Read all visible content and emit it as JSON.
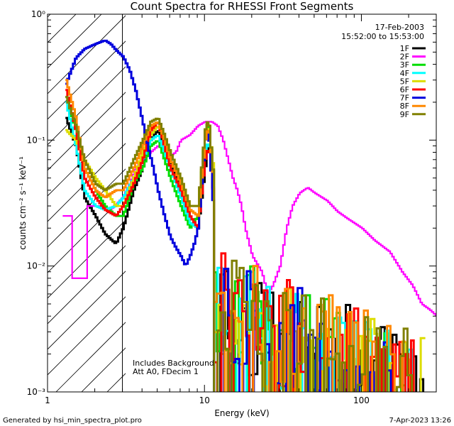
{
  "chart_data": {
    "type": "line",
    "title": "Count Spectra for RHESSI Front Segments",
    "xlabel": "Energy (keV)",
    "ylabel": "counts cm⁻² s⁻¹ keV⁻¹",
    "x_scale": "log",
    "y_scale": "log",
    "xlim": [
      1,
      300
    ],
    "ylim": [
      0.001,
      1
    ],
    "x_ticks": [
      {
        "value": 1,
        "label": "1"
      },
      {
        "value": 10,
        "label": "10"
      },
      {
        "value": 100,
        "label": "100"
      }
    ],
    "y_ticks": [
      {
        "value": 1,
        "label": "10⁰"
      },
      {
        "value": 0.1,
        "label": "10⁻¹"
      },
      {
        "value": 0.01,
        "label": "10⁻²"
      },
      {
        "value": 0.001,
        "label": "10⁻³"
      }
    ],
    "shaded_region_xmax_keV": 3,
    "date_label": "17-Feb-2003",
    "time_range_label": "15:52:00 to 15:53:00",
    "note_lines": [
      "Includes Background",
      "Att A0, FDecim 1"
    ],
    "footer_left": "Generated by hsi_min_spectra_plot.pro",
    "footer_right": "7-Apr-2023 13:26",
    "series": [
      {
        "name": "1F",
        "color": "#000000",
        "seed": 11,
        "noise_energy": 11.5,
        "points": [
          [
            1.3,
            0.15
          ],
          [
            1.5,
            0.09
          ],
          [
            1.7,
            0.035
          ],
          [
            2.0,
            0.025
          ],
          [
            2.3,
            0.018
          ],
          [
            2.7,
            0.015
          ],
          [
            3.0,
            0.02
          ],
          [
            3.5,
            0.04
          ],
          [
            4.0,
            0.06
          ],
          [
            4.5,
            0.1
          ],
          [
            5.0,
            0.12
          ],
          [
            5.5,
            0.09
          ],
          [
            6.0,
            0.07
          ],
          [
            7.0,
            0.04
          ],
          [
            8.0,
            0.025
          ],
          [
            9.0,
            0.02
          ],
          [
            10.0,
            0.06
          ],
          [
            10.5,
            0.1
          ],
          [
            11.5,
            0.03
          ]
        ]
      },
      {
        "name": "2F",
        "color": "#ff00ff",
        "seed": 0,
        "noise_energy": 0,
        "points": [
          [
            1.25,
            0.025
          ],
          [
            1.4,
            0.025
          ],
          [
            1.41,
            0.008
          ],
          [
            1.75,
            0.008
          ],
          [
            1.76,
            0.03
          ],
          [
            2.2,
            0.03
          ],
          [
            2.5,
            0.028
          ],
          [
            3.0,
            0.035
          ],
          [
            3.3,
            0.045
          ],
          [
            3.6,
            0.06
          ],
          [
            4.0,
            0.07
          ],
          [
            4.5,
            0.08
          ],
          [
            5.0,
            0.09
          ],
          [
            5.5,
            0.085
          ],
          [
            6.0,
            0.075
          ],
          [
            6.5,
            0.08
          ],
          [
            7.0,
            0.1
          ],
          [
            8.0,
            0.11
          ],
          [
            9.0,
            0.13
          ],
          [
            10.0,
            0.14
          ],
          [
            11.0,
            0.14
          ],
          [
            12.0,
            0.13
          ],
          [
            13.0,
            0.1
          ],
          [
            14.0,
            0.07
          ],
          [
            15.0,
            0.05
          ],
          [
            16.0,
            0.04
          ],
          [
            17.0,
            0.03
          ],
          [
            18.0,
            0.02
          ],
          [
            20.0,
            0.012
          ],
          [
            23.0,
            0.009
          ],
          [
            25.0,
            0.006
          ],
          [
            27.0,
            0.007
          ],
          [
            30.0,
            0.01
          ],
          [
            33.0,
            0.02
          ],
          [
            36.0,
            0.03
          ],
          [
            40.0,
            0.038
          ],
          [
            45.0,
            0.042
          ],
          [
            50.0,
            0.038
          ],
          [
            60.0,
            0.033
          ],
          [
            70.0,
            0.027
          ],
          [
            80.0,
            0.024
          ],
          [
            100.0,
            0.02
          ],
          [
            120.0,
            0.016
          ],
          [
            150.0,
            0.013
          ],
          [
            180.0,
            0.009
          ],
          [
            210.0,
            0.007
          ],
          [
            240.0,
            0.005
          ],
          [
            270.0,
            0.0045
          ],
          [
            300.0,
            0.004
          ]
        ]
      },
      {
        "name": "3F",
        "color": "#00dd00",
        "seed": 33,
        "noise_energy": 11.5,
        "points": [
          [
            1.3,
            0.22
          ],
          [
            1.5,
            0.12
          ],
          [
            1.7,
            0.06
          ],
          [
            2.0,
            0.04
          ],
          [
            2.3,
            0.03
          ],
          [
            2.7,
            0.025
          ],
          [
            3.0,
            0.025
          ],
          [
            3.5,
            0.045
          ],
          [
            4.0,
            0.06
          ],
          [
            4.5,
            0.09
          ],
          [
            5.0,
            0.1
          ],
          [
            5.5,
            0.07
          ],
          [
            6.0,
            0.05
          ],
          [
            7.0,
            0.03
          ],
          [
            8.0,
            0.02
          ],
          [
            9.0,
            0.025
          ],
          [
            10.0,
            0.12
          ],
          [
            10.5,
            0.14
          ],
          [
            11.5,
            0.04
          ]
        ]
      },
      {
        "name": "4F",
        "color": "#00ffff",
        "seed": 44,
        "noise_energy": 11.5,
        "points": [
          [
            1.3,
            0.2
          ],
          [
            1.5,
            0.09
          ],
          [
            1.7,
            0.04
          ],
          [
            2.0,
            0.03
          ],
          [
            2.3,
            0.028
          ],
          [
            2.7,
            0.03
          ],
          [
            3.0,
            0.035
          ],
          [
            3.5,
            0.05
          ],
          [
            4.0,
            0.07
          ],
          [
            4.5,
            0.1
          ],
          [
            5.0,
            0.11
          ],
          [
            5.5,
            0.08
          ],
          [
            6.0,
            0.06
          ],
          [
            7.0,
            0.035
          ],
          [
            8.0,
            0.022
          ],
          [
            9.0,
            0.02
          ],
          [
            10.0,
            0.08
          ],
          [
            10.5,
            0.1
          ],
          [
            11.5,
            0.035
          ]
        ]
      },
      {
        "name": "5F",
        "color": "#dddd00",
        "seed": 55,
        "noise_energy": 11.5,
        "points": [
          [
            1.3,
            0.12
          ],
          [
            1.5,
            0.1
          ],
          [
            1.7,
            0.07
          ],
          [
            2.0,
            0.05
          ],
          [
            2.3,
            0.04
          ],
          [
            2.7,
            0.03
          ],
          [
            3.0,
            0.03
          ],
          [
            3.5,
            0.05
          ],
          [
            4.0,
            0.08
          ],
          [
            4.5,
            0.11
          ],
          [
            5.0,
            0.13
          ],
          [
            5.5,
            0.1
          ],
          [
            6.0,
            0.08
          ],
          [
            7.0,
            0.05
          ],
          [
            8.0,
            0.03
          ],
          [
            9.0,
            0.03
          ],
          [
            10.0,
            0.11
          ],
          [
            10.5,
            0.13
          ],
          [
            11.5,
            0.05
          ]
        ]
      },
      {
        "name": "6F",
        "color": "#ff0000",
        "seed": 66,
        "noise_energy": 11.5,
        "points": [
          [
            1.3,
            0.25
          ],
          [
            1.5,
            0.12
          ],
          [
            1.7,
            0.05
          ],
          [
            2.0,
            0.035
          ],
          [
            2.3,
            0.028
          ],
          [
            2.7,
            0.025
          ],
          [
            3.0,
            0.03
          ],
          [
            3.5,
            0.045
          ],
          [
            4.0,
            0.07
          ],
          [
            4.5,
            0.12
          ],
          [
            5.0,
            0.14
          ],
          [
            5.5,
            0.09
          ],
          [
            6.0,
            0.06
          ],
          [
            7.0,
            0.04
          ],
          [
            8.0,
            0.025
          ],
          [
            9.0,
            0.02
          ],
          [
            10.0,
            0.07
          ],
          [
            10.5,
            0.09
          ],
          [
            11.5,
            0.03
          ]
        ]
      },
      {
        "name": "7F",
        "color": "#0000dd",
        "seed": 77,
        "noise_energy": 11.5,
        "points": [
          [
            1.3,
            0.28
          ],
          [
            1.5,
            0.45
          ],
          [
            1.7,
            0.53
          ],
          [
            2.0,
            0.58
          ],
          [
            2.3,
            0.62
          ],
          [
            2.5,
            0.58
          ],
          [
            2.7,
            0.52
          ],
          [
            3.0,
            0.46
          ],
          [
            3.3,
            0.36
          ],
          [
            3.6,
            0.25
          ],
          [
            4.0,
            0.14
          ],
          [
            4.3,
            0.09
          ],
          [
            4.6,
            0.065
          ],
          [
            5.0,
            0.04
          ],
          [
            5.5,
            0.025
          ],
          [
            6.0,
            0.017
          ],
          [
            6.5,
            0.014
          ],
          [
            7.0,
            0.012
          ],
          [
            7.5,
            0.01
          ],
          [
            8.0,
            0.012
          ],
          [
            8.5,
            0.015
          ],
          [
            9.0,
            0.02
          ],
          [
            10.0,
            0.1
          ],
          [
            10.5,
            0.12
          ],
          [
            11.5,
            0.02
          ]
        ]
      },
      {
        "name": "8F",
        "color": "#ff8800",
        "seed": 88,
        "noise_energy": 11.5,
        "points": [
          [
            1.3,
            0.3
          ],
          [
            1.5,
            0.15
          ],
          [
            1.7,
            0.06
          ],
          [
            2.0,
            0.04
          ],
          [
            2.3,
            0.035
          ],
          [
            2.7,
            0.04
          ],
          [
            3.0,
            0.04
          ],
          [
            3.5,
            0.06
          ],
          [
            4.0,
            0.09
          ],
          [
            4.5,
            0.13
          ],
          [
            5.0,
            0.14
          ],
          [
            5.5,
            0.1
          ],
          [
            6.0,
            0.07
          ],
          [
            7.0,
            0.045
          ],
          [
            8.0,
            0.028
          ],
          [
            9.0,
            0.025
          ],
          [
            10.0,
            0.1
          ],
          [
            10.5,
            0.13
          ],
          [
            11.5,
            0.04
          ]
        ]
      },
      {
        "name": "9F",
        "color": "#808000",
        "seed": 99,
        "noise_energy": 11.5,
        "points": [
          [
            1.3,
            0.22
          ],
          [
            1.5,
            0.13
          ],
          [
            1.7,
            0.07
          ],
          [
            2.0,
            0.045
          ],
          [
            2.3,
            0.04
          ],
          [
            2.7,
            0.045
          ],
          [
            3.0,
            0.045
          ],
          [
            3.5,
            0.07
          ],
          [
            4.0,
            0.1
          ],
          [
            4.5,
            0.14
          ],
          [
            5.0,
            0.15
          ],
          [
            5.5,
            0.11
          ],
          [
            6.0,
            0.08
          ],
          [
            7.0,
            0.05
          ],
          [
            8.0,
            0.03
          ],
          [
            9.0,
            0.03
          ],
          [
            10.0,
            0.12
          ],
          [
            10.5,
            0.15
          ],
          [
            11.5,
            0.04
          ]
        ]
      }
    ]
  }
}
